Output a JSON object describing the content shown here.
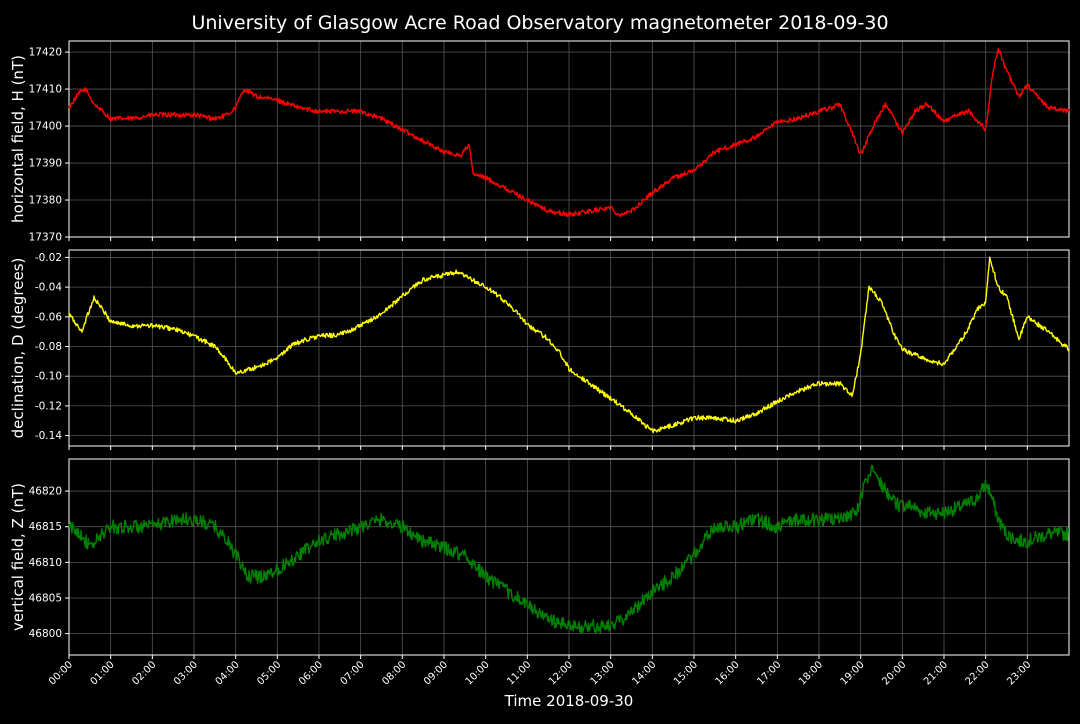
{
  "title": "University of Glasgow Acre Road Observatory magnetometer 2018-09-30",
  "xlabel": "Time 2018-09-30",
  "x_tick_labels": [
    "00:00",
    "01:00",
    "02:00",
    "03:00",
    "04:00",
    "05:00",
    "06:00",
    "07:00",
    "08:00",
    "09:00",
    "10:00",
    "11:00",
    "12:00",
    "13:00",
    "14:00",
    "15:00",
    "16:00",
    "17:00",
    "18:00",
    "19:00",
    "20:00",
    "21:00",
    "22:00",
    "23:00"
  ],
  "colors": {
    "background": "#000000",
    "grid": "#555555",
    "H": "#ff0000",
    "D": "#ffff00",
    "Z": "#008000"
  },
  "chart_data": [
    {
      "type": "line",
      "ylabel": "horizontal field, H (nT)",
      "ylim": [
        17370,
        17423
      ],
      "yticks": [
        17370,
        17380,
        17390,
        17400,
        17410,
        17420
      ],
      "xlim": [
        0,
        24
      ],
      "grid": true,
      "series": [
        {
          "color": "#ff0000",
          "x": [
            0,
            0.25,
            0.4,
            0.6,
            0.8,
            1.0,
            1.5,
            2.0,
            2.5,
            3.0,
            3.5,
            3.8,
            4.0,
            4.2,
            4.5,
            5.0,
            5.5,
            6.0,
            6.5,
            7.0,
            7.5,
            8.0,
            8.5,
            9.0,
            9.4,
            9.6,
            9.7,
            10.0,
            10.5,
            11.0,
            11.5,
            12.0,
            12.5,
            13.0,
            13.2,
            13.5,
            14.0,
            14.5,
            15.0,
            15.5,
            16.0,
            16.5,
            17.0,
            17.5,
            18.0,
            18.3,
            18.5,
            18.8,
            19.0,
            19.3,
            19.6,
            20.0,
            20.3,
            20.6,
            21.0,
            21.3,
            21.6,
            22.0,
            22.15,
            22.3,
            22.5,
            22.8,
            23.0,
            23.5,
            24.0
          ],
          "values": [
            17405,
            17409,
            17410,
            17406,
            17404,
            17402,
            17402,
            17403,
            17403,
            17403,
            17402,
            17403,
            17405,
            17410,
            17408,
            17407,
            17405,
            17404,
            17404,
            17404,
            17402,
            17399,
            17396,
            17393,
            17392,
            17395,
            17387,
            17386,
            17383,
            17380,
            17377,
            17376,
            17377,
            17378,
            17376,
            17377,
            17382,
            17386,
            17388,
            17393,
            17395,
            17397,
            17401,
            17402,
            17404,
            17405,
            17406,
            17398,
            17392,
            17400,
            17406,
            17398,
            17404,
            17406,
            17401,
            17403,
            17404,
            17399,
            17413,
            17421,
            17415,
            17408,
            17411,
            17405,
            17404
          ]
        }
      ]
    },
    {
      "type": "line",
      "ylabel": "declination, D (degrees)",
      "ylim": [
        -0.147,
        -0.015
      ],
      "yticks": [
        -0.14,
        -0.12,
        -0.1,
        -0.08,
        -0.06,
        -0.04,
        -0.02
      ],
      "xlim": [
        0,
        24
      ],
      "grid": true,
      "series": [
        {
          "color": "#ffff00",
          "x": [
            0,
            0.3,
            0.6,
            0.8,
            1.0,
            1.5,
            2.0,
            2.5,
            3.0,
            3.5,
            3.8,
            4.0,
            4.5,
            5.0,
            5.3,
            5.6,
            6.0,
            6.5,
            7.0,
            7.5,
            8.0,
            8.5,
            9.0,
            9.3,
            9.6,
            10.0,
            10.5,
            11.0,
            11.5,
            11.8,
            12.0,
            12.5,
            13.0,
            13.5,
            14.0,
            14.5,
            15.0,
            15.5,
            16.0,
            16.5,
            17.0,
            17.5,
            18.0,
            18.5,
            18.8,
            19.0,
            19.2,
            19.5,
            19.8,
            20.0,
            20.5,
            21.0,
            21.5,
            21.8,
            22.0,
            22.1,
            22.3,
            22.5,
            22.8,
            23.0,
            23.5,
            24.0
          ],
          "values": [
            -0.058,
            -0.07,
            -0.047,
            -0.055,
            -0.063,
            -0.066,
            -0.066,
            -0.068,
            -0.073,
            -0.08,
            -0.09,
            -0.098,
            -0.094,
            -0.088,
            -0.08,
            -0.076,
            -0.073,
            -0.072,
            -0.066,
            -0.058,
            -0.046,
            -0.035,
            -0.032,
            -0.03,
            -0.034,
            -0.04,
            -0.05,
            -0.065,
            -0.075,
            -0.085,
            -0.095,
            -0.105,
            -0.115,
            -0.125,
            -0.137,
            -0.133,
            -0.128,
            -0.128,
            -0.13,
            -0.125,
            -0.117,
            -0.11,
            -0.105,
            -0.105,
            -0.113,
            -0.085,
            -0.04,
            -0.05,
            -0.072,
            -0.082,
            -0.088,
            -0.092,
            -0.072,
            -0.055,
            -0.05,
            -0.02,
            -0.04,
            -0.046,
            -0.075,
            -0.06,
            -0.07,
            -0.082
          ]
        }
      ]
    },
    {
      "type": "line",
      "ylabel": "vertical field, Z (nT)",
      "ylim": [
        46797,
        46824.5
      ],
      "yticks": [
        46800,
        46805,
        46810,
        46815,
        46820
      ],
      "xlim": [
        0,
        24
      ],
      "grid": true,
      "series": [
        {
          "color": "#008000",
          "x": [
            0,
            0.3,
            0.5,
            0.8,
            1.0,
            1.5,
            2.0,
            2.5,
            3.0,
            3.5,
            3.8,
            4.0,
            4.3,
            4.6,
            5.0,
            5.5,
            6.0,
            6.5,
            7.0,
            7.5,
            8.0,
            8.5,
            9.0,
            9.5,
            10.0,
            10.5,
            11.0,
            11.5,
            12.0,
            12.5,
            13.0,
            13.5,
            14.0,
            14.5,
            15.0,
            15.5,
            16.0,
            16.5,
            17.0,
            17.5,
            18.0,
            18.5,
            18.9,
            19.1,
            19.3,
            19.6,
            19.9,
            20.2,
            20.5,
            21.0,
            21.5,
            21.8,
            22.0,
            22.1,
            22.3,
            22.5,
            22.8,
            23.0,
            23.5,
            24.0
          ],
          "values": [
            46815,
            46814,
            46812,
            46814,
            46815,
            46815,
            46815,
            46816,
            46816,
            46815,
            46813,
            46811,
            46808,
            46808,
            46809,
            46811,
            46813,
            46814,
            46815,
            46816,
            46815,
            46813,
            46812,
            46811,
            46808,
            46806,
            46804,
            46802,
            46801,
            46801,
            46801,
            46803,
            46806,
            46808,
            46811,
            46815,
            46815,
            46816,
            46815,
            46816,
            46816,
            46816,
            46817,
            46821,
            46823,
            46820,
            46818,
            46818,
            46817,
            46817,
            46818,
            46819,
            46821,
            46820,
            46816,
            46814,
            46813,
            46813,
            46814,
            46814
          ]
        }
      ]
    }
  ]
}
